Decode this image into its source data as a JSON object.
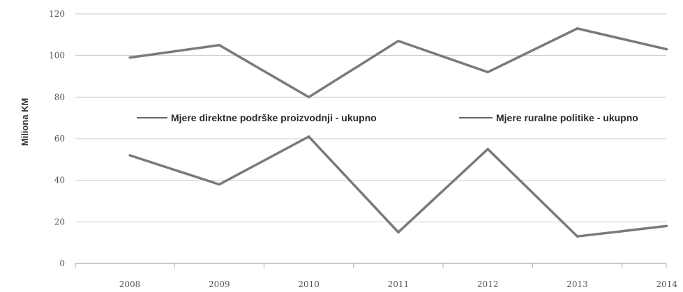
{
  "chart_data": {
    "type": "line",
    "categories": [
      "2008",
      "2009",
      "2010",
      "2011",
      "2012",
      "2013",
      "2014"
    ],
    "series": [
      {
        "name": "Mjere direktne podrške proizvodnji - ukupno",
        "values": [
          99,
          105,
          80,
          107,
          92,
          113,
          103
        ]
      },
      {
        "name": "Mjere ruralne politike - ukupno",
        "values": [
          52,
          38,
          61,
          15,
          55,
          13,
          18
        ]
      }
    ],
    "ylabel": "Miliona KM",
    "ylim": [
      0,
      120
    ],
    "yticks": [
      "0",
      "20",
      "40",
      "60",
      "80",
      "100",
      "120"
    ],
    "grid": true,
    "legend_position": "middle",
    "colors": {
      "line": "#7a7a7a",
      "grid": "#c9c9c9",
      "axis": "#aaaaaa"
    }
  }
}
